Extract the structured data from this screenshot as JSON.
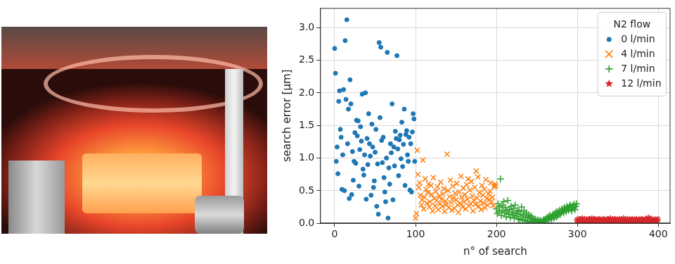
{
  "chart_data": {
    "type": "scatter",
    "x_label": "n° of search",
    "y_label": "search error [µm]",
    "xlim": [
      -18,
      415
    ],
    "ylim": [
      0,
      3.3
    ],
    "xticks": [
      0,
      100,
      200,
      300,
      400
    ],
    "yticks": [
      {
        "value": 0,
        "label": "0.0"
      },
      0.5,
      {
        "value": 1,
        "label": "1.0"
      },
      1.5,
      {
        "value": 2,
        "label": "2.0"
      },
      2.5,
      {
        "value": 3,
        "label": "3.0"
      }
    ],
    "grid": true,
    "legend": "upper right",
    "legend_title": "N2 flow",
    "series": [
      {
        "name": "0 l/min",
        "color": "#1f77b4",
        "marker": "circle",
        "x": [
          0,
          1,
          2,
          3,
          4,
          5,
          6,
          7,
          8,
          9,
          10,
          11,
          12,
          13,
          14,
          15,
          16,
          17,
          18,
          19,
          20,
          21,
          22,
          23,
          24,
          25,
          26,
          27,
          28,
          29,
          30,
          31,
          32,
          33,
          34,
          35,
          36,
          37,
          38,
          39,
          40,
          41,
          42,
          43,
          44,
          45,
          46,
          47,
          48,
          49,
          50,
          51,
          52,
          53,
          54,
          55,
          56,
          57,
          58,
          59,
          60,
          61,
          62,
          63,
          64,
          65,
          66,
          67,
          68,
          69,
          70,
          71,
          72,
          73,
          74,
          75,
          76,
          77,
          78,
          79,
          80,
          81,
          82,
          83,
          84,
          85,
          86,
          87,
          88,
          89,
          90,
          91,
          92,
          93,
          94,
          95,
          96,
          97,
          98,
          99
        ],
        "values": [
          2.68,
          2.3,
          0.95,
          1.17,
          0.76,
          1.87,
          2.03,
          1.44,
          1.32,
          0.52,
          1.05,
          2.05,
          0.5,
          2.8,
          1.9,
          3.12,
          1.22,
          1.75,
          0.38,
          2.2,
          1.83,
          0.44,
          1.1,
          0.66,
          0.95,
          1.39,
          0.92,
          1.58,
          1.34,
          1.57,
          0.57,
          1.13,
          1.48,
          1.26,
          1.98,
          0.83,
          0.74,
          1.05,
          2.0,
          0.37,
          1.3,
          0.9,
          1.68,
          1.22,
          1.03,
          0.43,
          1.52,
          1.17,
          0.55,
          0.65,
          1.09,
          1.44,
          0.26,
          0.91,
          0.14,
          2.77,
          1.62,
          2.7,
          1.27,
          0.93,
          1.32,
          0.7,
          0.48,
          0.33,
          1.0,
          2.62,
          0.08,
          0.85,
          0.6,
          1.22,
          1.08,
          1.83,
          0.36,
          1.17,
          0.88,
          1.41,
          1.3,
          2.57,
          1.14,
          0.73,
          1.28,
          1.35,
          0.99,
          1.55,
          0.87,
          1.21,
          1.75,
          0.58,
          1.36,
          1.42,
          1.05,
          0.95,
          1.32,
          0.51,
          1.22,
          0.48,
          1.4,
          1.68,
          1.6,
          0.95
        ]
      },
      {
        "name": "4 l/min",
        "color": "#ff7f0e",
        "marker": "x",
        "x": [
          100,
          101,
          102,
          103,
          104,
          105,
          106,
          107,
          108,
          109,
          110,
          111,
          112,
          113,
          114,
          115,
          116,
          117,
          118,
          119,
          120,
          121,
          122,
          123,
          124,
          125,
          126,
          127,
          128,
          129,
          130,
          131,
          132,
          133,
          134,
          135,
          136,
          137,
          138,
          139,
          140,
          141,
          142,
          143,
          144,
          145,
          146,
          147,
          148,
          149,
          150,
          151,
          152,
          153,
          154,
          155,
          156,
          157,
          158,
          159,
          160,
          161,
          162,
          163,
          164,
          165,
          166,
          167,
          168,
          169,
          170,
          171,
          172,
          173,
          174,
          175,
          176,
          177,
          178,
          179,
          180,
          181,
          182,
          183,
          184,
          185,
          186,
          187,
          188,
          189,
          190,
          191,
          192,
          193,
          194,
          195,
          196,
          197,
          198,
          199
        ],
        "values": [
          0.08,
          0.15,
          1.12,
          0.75,
          0.55,
          0.62,
          0.43,
          0.28,
          0.36,
          0.97,
          0.22,
          0.4,
          0.68,
          0.52,
          0.31,
          0.47,
          0.6,
          0.25,
          0.33,
          0.58,
          0.44,
          0.19,
          0.7,
          0.38,
          0.27,
          0.49,
          0.35,
          0.56,
          0.21,
          0.42,
          0.3,
          0.63,
          0.37,
          0.26,
          0.45,
          0.53,
          0.18,
          0.34,
          0.29,
          1.06,
          0.5,
          0.24,
          0.41,
          0.66,
          0.32,
          0.2,
          0.57,
          0.39,
          0.23,
          0.46,
          0.36,
          0.61,
          0.28,
          0.17,
          0.48,
          0.31,
          0.72,
          0.4,
          0.25,
          0.54,
          0.33,
          0.44,
          0.22,
          0.59,
          0.37,
          0.68,
          0.27,
          0.51,
          0.3,
          0.64,
          0.42,
          0.19,
          0.35,
          0.55,
          0.29,
          0.8,
          0.39,
          0.71,
          0.26,
          0.47,
          0.34,
          0.21,
          0.58,
          0.43,
          0.31,
          0.52,
          0.24,
          0.67,
          0.38,
          0.28,
          0.45,
          0.36,
          0.49,
          0.62,
          0.33,
          0.4,
          0.27,
          0.56,
          0.6,
          0.57
        ]
      },
      {
        "name": "7 l/min",
        "color": "#2ca02c",
        "marker": "plus",
        "x": [
          200,
          201,
          202,
          203,
          204,
          205,
          206,
          207,
          208,
          209,
          210,
          211,
          212,
          213,
          214,
          215,
          216,
          217,
          218,
          219,
          220,
          221,
          222,
          223,
          224,
          225,
          226,
          227,
          228,
          229,
          230,
          231,
          232,
          233,
          234,
          235,
          236,
          237,
          238,
          239,
          240,
          241,
          242,
          243,
          244,
          245,
          246,
          247,
          248,
          249,
          250,
          251,
          252,
          253,
          254,
          255,
          256,
          257,
          258,
          259,
          260,
          261,
          262,
          263,
          264,
          265,
          266,
          267,
          268,
          269,
          270,
          271,
          272,
          273,
          274,
          275,
          276,
          277,
          278,
          279,
          280,
          281,
          282,
          283,
          284,
          285,
          286,
          287,
          288,
          289,
          290,
          291,
          292,
          293,
          294,
          295,
          296,
          297,
          298,
          299
        ],
        "values": [
          0.22,
          0.15,
          0.3,
          0.18,
          0.25,
          0.68,
          0.12,
          0.27,
          0.2,
          0.33,
          0.16,
          0.24,
          0.1,
          0.19,
          0.35,
          0.14,
          0.21,
          0.09,
          0.26,
          0.17,
          0.13,
          0.23,
          0.08,
          0.28,
          0.15,
          0.11,
          0.2,
          0.07,
          0.18,
          0.06,
          0.14,
          0.25,
          0.05,
          0.12,
          0.19,
          0.04,
          0.1,
          0.16,
          0.03,
          0.09,
          0.13,
          0.02,
          0.08,
          0.11,
          0.03,
          0.07,
          0.05,
          0.02,
          0.06,
          0.04,
          0.01,
          0.05,
          0.03,
          0.02,
          0.04,
          0.01,
          0.03,
          0.02,
          0.05,
          0.04,
          0.06,
          0.03,
          0.08,
          0.05,
          0.1,
          0.07,
          0.12,
          0.09,
          0.06,
          0.11,
          0.14,
          0.08,
          0.13,
          0.16,
          0.1,
          0.18,
          0.12,
          0.15,
          0.2,
          0.14,
          0.17,
          0.22,
          0.19,
          0.16,
          0.24,
          0.21,
          0.18,
          0.26,
          0.23,
          0.2,
          0.25,
          0.28,
          0.22,
          0.19,
          0.27,
          0.24,
          0.29,
          0.21,
          0.26,
          0.3
        ]
      },
      {
        "name": "12 l/min",
        "color": "#d62728",
        "marker": "star",
        "x": [
          300,
          301,
          302,
          303,
          304,
          305,
          306,
          307,
          308,
          309,
          310,
          311,
          312,
          313,
          314,
          315,
          316,
          317,
          318,
          319,
          320,
          321,
          322,
          323,
          324,
          325,
          326,
          327,
          328,
          329,
          330,
          331,
          332,
          333,
          334,
          335,
          336,
          337,
          338,
          339,
          340,
          341,
          342,
          343,
          344,
          345,
          346,
          347,
          348,
          349,
          350,
          351,
          352,
          353,
          354,
          355,
          356,
          357,
          358,
          359,
          360,
          361,
          362,
          363,
          364,
          365,
          366,
          367,
          368,
          369,
          370,
          371,
          372,
          373,
          374,
          375,
          376,
          377,
          378,
          379,
          380,
          381,
          382,
          383,
          384,
          385,
          386,
          387,
          388,
          389,
          390,
          391,
          392,
          393,
          394,
          395,
          396,
          397,
          398,
          399
        ],
        "values": [
          0.05,
          0.03,
          0.06,
          0.04,
          0.02,
          0.05,
          0.07,
          0.03,
          0.04,
          0.06,
          0.02,
          0.05,
          0.04,
          0.03,
          0.06,
          0.05,
          0.02,
          0.04,
          0.07,
          0.03,
          0.05,
          0.04,
          0.06,
          0.02,
          0.03,
          0.05,
          0.04,
          0.06,
          0.03,
          0.05,
          0.02,
          0.04,
          0.06,
          0.03,
          0.05,
          0.04,
          0.02,
          0.06,
          0.05,
          0.03,
          0.04,
          0.07,
          0.03,
          0.05,
          0.02,
          0.04,
          0.06,
          0.05,
          0.03,
          0.04,
          0.05,
          0.02,
          0.06,
          0.04,
          0.03,
          0.05,
          0.04,
          0.07,
          0.03,
          0.05,
          0.02,
          0.04,
          0.06,
          0.03,
          0.05,
          0.04,
          0.02,
          0.05,
          0.06,
          0.03,
          0.04,
          0.05,
          0.03,
          0.06,
          0.04,
          0.02,
          0.05,
          0.03,
          0.04,
          0.06,
          0.05,
          0.03,
          0.04,
          0.02,
          0.06,
          0.05,
          0.04,
          0.03,
          0.08,
          0.05,
          0.04,
          0.06,
          0.03,
          0.05,
          0.04,
          0.02,
          0.05,
          0.04,
          0.03,
          0.06
        ]
      }
    ]
  }
}
